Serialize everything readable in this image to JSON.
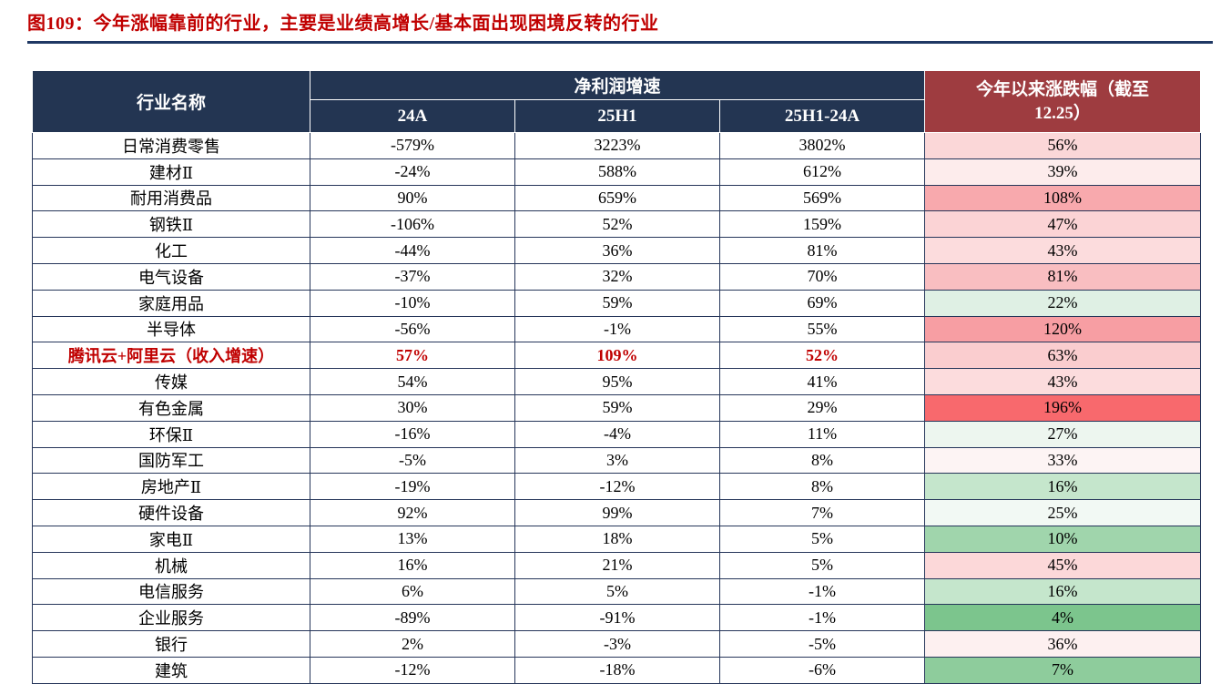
{
  "title": "图109：今年涨幅靠前的行业，主要是业绩高增长/基本面出现困境反转的行业",
  "colors": {
    "title_red": "#C00000",
    "header_navy": "#233552",
    "header_maroon": "#9E3C40",
    "border_navy": "#26365a",
    "highlight_text": "#C00000",
    "divider_navy": "#1F3864"
  },
  "table": {
    "header": {
      "industry": "行业名称",
      "profit_group": "净利润增速",
      "sub_columns": [
        "24A",
        "25H1",
        "25H1-24A"
      ],
      "ytd": "今年以来涨跌幅（截至\n12.25）"
    },
    "rows": [
      {
        "name": "日常消费零售",
        "a24": "-579%",
        "h25": "3223%",
        "diff": "3802%",
        "ytd": "56%",
        "ytd_color": "#FBD7D8",
        "highlight": false
      },
      {
        "name": "建材Ⅱ",
        "a24": "-24%",
        "h25": "588%",
        "diff": "612%",
        "ytd": "39%",
        "ytd_color": "#FDECEC",
        "highlight": false
      },
      {
        "name": "耐用消费品",
        "a24": "90%",
        "h25": "659%",
        "diff": "569%",
        "ytd": "108%",
        "ytd_color": "#F8A9AD",
        "highlight": false
      },
      {
        "name": "钢铁Ⅱ",
        "a24": "-106%",
        "h25": "52%",
        "diff": "159%",
        "ytd": "47%",
        "ytd_color": "#FBD3D5",
        "highlight": false
      },
      {
        "name": "化工",
        "a24": "-44%",
        "h25": "36%",
        "diff": "81%",
        "ytd": "43%",
        "ytd_color": "#FCDCDD",
        "highlight": false
      },
      {
        "name": "电气设备",
        "a24": "-37%",
        "h25": "32%",
        "diff": "70%",
        "ytd": "81%",
        "ytd_color": "#F9BEC1",
        "highlight": false
      },
      {
        "name": "家庭用品",
        "a24": "-10%",
        "h25": "59%",
        "diff": "69%",
        "ytd": "22%",
        "ytd_color": "#DFF0E4",
        "highlight": false
      },
      {
        "name": "半导体",
        "a24": "-56%",
        "h25": "-1%",
        "diff": "55%",
        "ytd": "120%",
        "ytd_color": "#F79EA3",
        "highlight": false
      },
      {
        "name": "腾讯云+阿里云（收入增速）",
        "a24": "57%",
        "h25": "109%",
        "diff": "52%",
        "ytd": "63%",
        "ytd_color": "#FACDCF",
        "highlight": true
      },
      {
        "name": "传媒",
        "a24": "54%",
        "h25": "95%",
        "diff": "41%",
        "ytd": "43%",
        "ytd_color": "#FCDCDD",
        "highlight": false
      },
      {
        "name": "有色金属",
        "a24": "30%",
        "h25": "59%",
        "diff": "29%",
        "ytd": "196%",
        "ytd_color": "#F8696D",
        "highlight": false
      },
      {
        "name": "环保Ⅱ",
        "a24": "-16%",
        "h25": "-4%",
        "diff": "11%",
        "ytd": "27%",
        "ytd_color": "#EDF6EF",
        "highlight": false
      },
      {
        "name": "国防军工",
        "a24": "-5%",
        "h25": "3%",
        "diff": "8%",
        "ytd": "33%",
        "ytd_color": "#FDF4F4",
        "highlight": false
      },
      {
        "name": "房地产Ⅱ",
        "a24": "-19%",
        "h25": "-12%",
        "diff": "8%",
        "ytd": "16%",
        "ytd_color": "#C5E6CC",
        "highlight": false
      },
      {
        "name": "硬件设备",
        "a24": "92%",
        "h25": "99%",
        "diff": "7%",
        "ytd": "25%",
        "ytd_color": "#F2F9F4",
        "highlight": false
      },
      {
        "name": "家电Ⅱ",
        "a24": "13%",
        "h25": "18%",
        "diff": "5%",
        "ytd": "10%",
        "ytd_color": "#A0D5AC",
        "highlight": false
      },
      {
        "name": "机械",
        "a24": "16%",
        "h25": "21%",
        "diff": "5%",
        "ytd": "45%",
        "ytd_color": "#FCD8D9",
        "highlight": false
      },
      {
        "name": "电信服务",
        "a24": "6%",
        "h25": "5%",
        "diff": "-1%",
        "ytd": "16%",
        "ytd_color": "#C5E6CC",
        "highlight": false
      },
      {
        "name": "企业服务",
        "a24": "-89%",
        "h25": "-91%",
        "diff": "-1%",
        "ytd": "4%",
        "ytd_color": "#7CC58D",
        "highlight": false
      },
      {
        "name": "银行",
        "a24": "2%",
        "h25": "-3%",
        "diff": "-5%",
        "ytd": "36%",
        "ytd_color": "#FDF0F0",
        "highlight": false
      },
      {
        "name": "建筑",
        "a24": "-12%",
        "h25": "-18%",
        "diff": "-6%",
        "ytd": "7%",
        "ytd_color": "#8ECC9C",
        "highlight": false
      }
    ]
  },
  "chart_data": {
    "type": "table",
    "title": "图109：今年涨幅靠前的行业，主要是业绩高增长/基本面出现困境反转的行业",
    "unit": "%",
    "columns": [
      "行业名称",
      "净利润增速 24A",
      "净利润增速 25H1",
      "净利润增速 25H1-24A",
      "今年以来涨跌幅（截至12.25）"
    ],
    "rows": [
      [
        "日常消费零售",
        -579,
        3223,
        3802,
        56
      ],
      [
        "建材Ⅱ",
        -24,
        588,
        612,
        39
      ],
      [
        "耐用消费品",
        90,
        659,
        569,
        108
      ],
      [
        "钢铁Ⅱ",
        -106,
        52,
        159,
        47
      ],
      [
        "化工",
        -44,
        36,
        81,
        43
      ],
      [
        "电气设备",
        -37,
        32,
        70,
        81
      ],
      [
        "家庭用品",
        -10,
        59,
        69,
        22
      ],
      [
        "半导体",
        -56,
        -1,
        55,
        120
      ],
      [
        "腾讯云+阿里云（收入增速）",
        57,
        109,
        52,
        63
      ],
      [
        "传媒",
        54,
        95,
        41,
        43
      ],
      [
        "有色金属",
        30,
        59,
        29,
        196
      ],
      [
        "环保Ⅱ",
        -16,
        -4,
        11,
        27
      ],
      [
        "国防军工",
        -5,
        3,
        8,
        33
      ],
      [
        "房地产Ⅱ",
        -19,
        -12,
        8,
        16
      ],
      [
        "硬件设备",
        92,
        99,
        7,
        25
      ],
      [
        "家电Ⅱ",
        13,
        18,
        5,
        10
      ],
      [
        "机械",
        16,
        21,
        5,
        45
      ],
      [
        "电信服务",
        6,
        5,
        -1,
        16
      ],
      [
        "企业服务",
        -89,
        -91,
        -1,
        4
      ],
      [
        "银行",
        2,
        -3,
        -5,
        36
      ],
      [
        "建筑",
        -12,
        -18,
        -6,
        7
      ]
    ],
    "highlight_row": "腾讯云+阿里云（收入增速）",
    "notes": "最后一列为红绿色阶条件格式：数值越高越红，越低越绿"
  }
}
